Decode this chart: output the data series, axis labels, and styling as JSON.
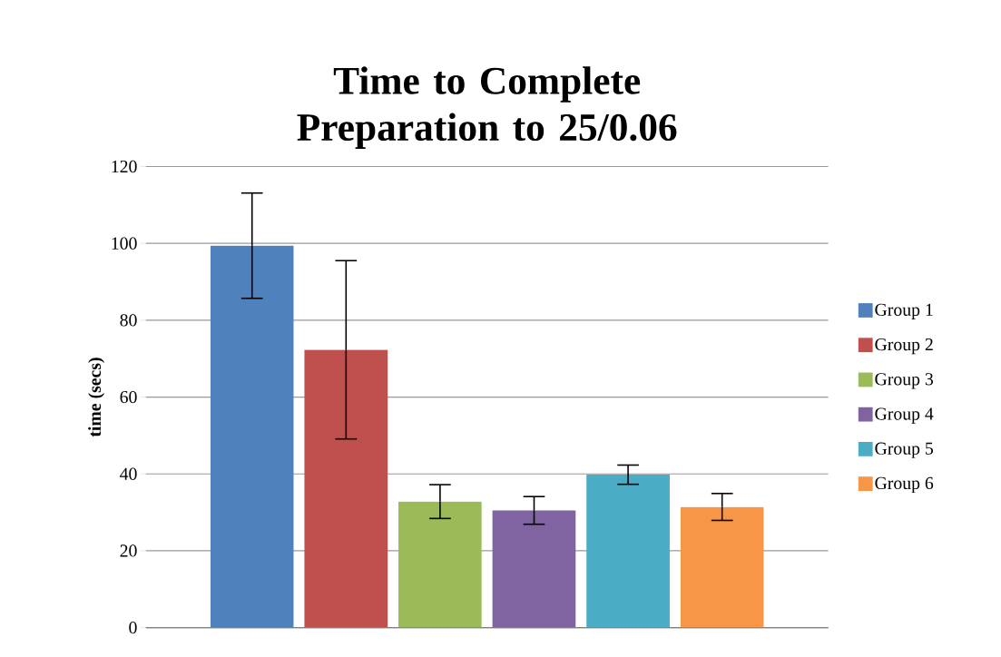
{
  "chart_data": {
    "type": "bar",
    "title": "Time to Complete Preparation to 25/0.06",
    "ylabel": "time (secs)",
    "categories": [
      null
    ],
    "series": [
      {
        "name": "Group 1",
        "color": "#4f81bd",
        "values": [
          99.4
        ],
        "errors": [
          13.7
        ]
      },
      {
        "name": "Group 2",
        "color": "#c0504d",
        "values": [
          72.3
        ],
        "errors": [
          23.2
        ]
      },
      {
        "name": "Group 3",
        "color": "#9bbb59",
        "values": [
          32.8
        ],
        "errors": [
          4.4
        ]
      },
      {
        "name": "Group 4",
        "color": "#8064a2",
        "values": [
          30.5
        ],
        "errors": [
          3.6
        ]
      },
      {
        "name": "Group 5",
        "color": "#4bacc6",
        "values": [
          39.8
        ],
        "errors": [
          2.5
        ]
      },
      {
        "name": "Group 6",
        "color": "#f79646",
        "values": [
          31.4
        ],
        "errors": [
          3.5
        ]
      }
    ],
    "ylim": [
      0,
      120
    ],
    "yticks": [
      0,
      20,
      40,
      60,
      80,
      100,
      120
    ],
    "grid": "y",
    "legend": "right"
  }
}
